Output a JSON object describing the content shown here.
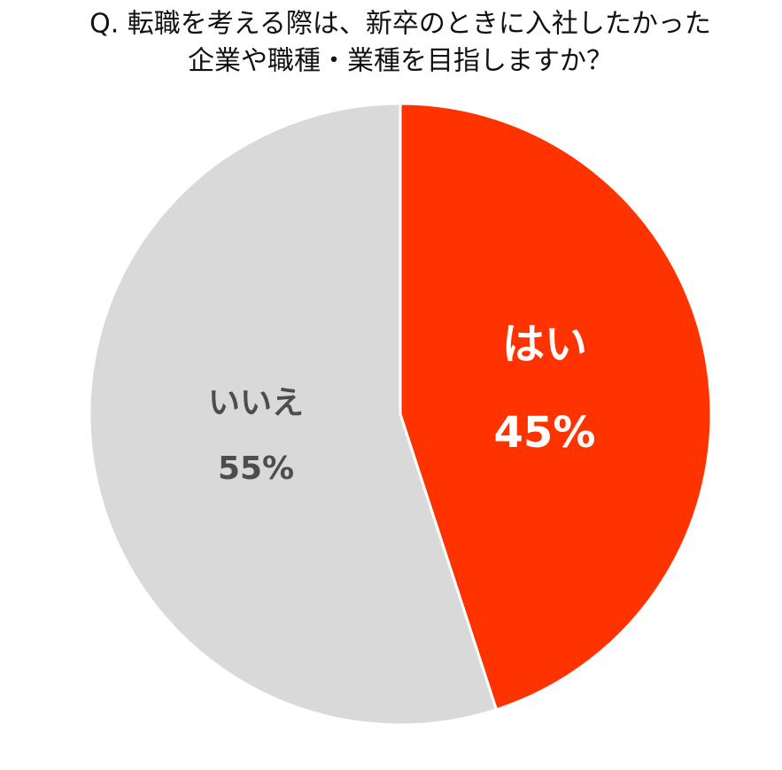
{
  "chart_data": {
    "type": "pie",
    "title": [
      "Q. 転職を考える際は、新卒のときに入社したかった",
      "企業や職種・業種を目指しますか？"
    ],
    "categories": [
      "はい",
      "いいえ"
    ],
    "values": [
      45,
      55
    ],
    "value_labels": [
      "45%",
      "55%"
    ],
    "colors": [
      "#ff3300",
      "#d9d9d9"
    ],
    "label_colors": [
      "#ffffff",
      "#4d4d4d"
    ]
  }
}
